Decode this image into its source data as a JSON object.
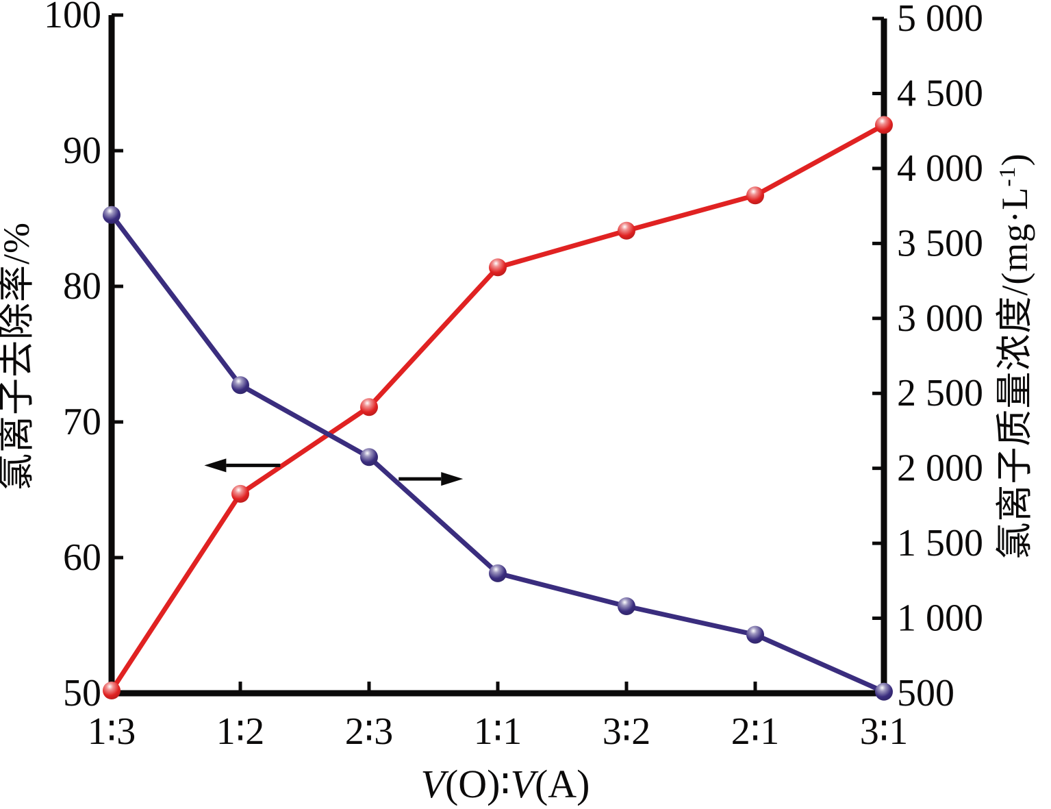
{
  "figure": {
    "background": "#ffffff"
  },
  "chart_data": {
    "type": "line",
    "title": "",
    "x_axis": {
      "title_full": "V(O)∶V(A)",
      "title_segments": [
        {
          "text": "V",
          "italic": true
        },
        {
          "text": "(O)∶",
          "italic": false
        },
        {
          "text": "V",
          "italic": true
        },
        {
          "text": "(A)",
          "italic": false
        }
      ],
      "categories": [
        "1∶3",
        "1∶2",
        "2∶3",
        "1∶1",
        "3∶2",
        "2∶1",
        "3∶1"
      ]
    },
    "left_axis": {
      "label": "氯离子去除率/%",
      "tick_labels": [
        "100",
        "90",
        "80",
        "70",
        "60",
        "50"
      ],
      "range": [
        50,
        100
      ]
    },
    "right_axis": {
      "label_pre": "氯离子质量浓度/(mg·L",
      "label_sup": "-1",
      "label_post": ")",
      "label_full": "氯离子质量浓度/(mg·L⁻¹)",
      "tick_labels": [
        "5 000",
        "4 500",
        "4 000",
        "3 500",
        "3 000",
        "2 500",
        "2 000",
        "1 500",
        "1 000",
        "500"
      ],
      "range": [
        500,
        5000
      ]
    },
    "series": [
      {
        "key": "removal-rate",
        "name": "氯离子去除率",
        "axis": "left",
        "color": "#e02222",
        "marker": "sphere",
        "values": [
          50.2,
          64.7,
          71.1,
          81.4,
          84.1,
          86.7,
          91.9
        ]
      },
      {
        "key": "chloride-concentration",
        "name": "氯离子质量浓度",
        "axis": "right",
        "color": "#3a2d7e",
        "marker": "sphere",
        "values": [
          3690,
          2555,
          2075,
          1300,
          1080,
          890,
          510
        ]
      }
    ],
    "annotations": [
      {
        "type": "arrow",
        "direction": "left",
        "meaning": "red curve reads left axis",
        "tip_x_index": 0.72,
        "tail_x_index": 1.31,
        "y_left_value": 66.8
      },
      {
        "type": "arrow",
        "direction": "right",
        "meaning": "blue curve reads right axis",
        "tip_x_index": 2.73,
        "tail_x_index": 2.23,
        "y_left_value": 65.8
      }
    ],
    "grid": false,
    "legend": "none",
    "styles": {
      "axis_color": "#0b0a0a",
      "line_width": 7,
      "marker_radius": 13
    }
  }
}
